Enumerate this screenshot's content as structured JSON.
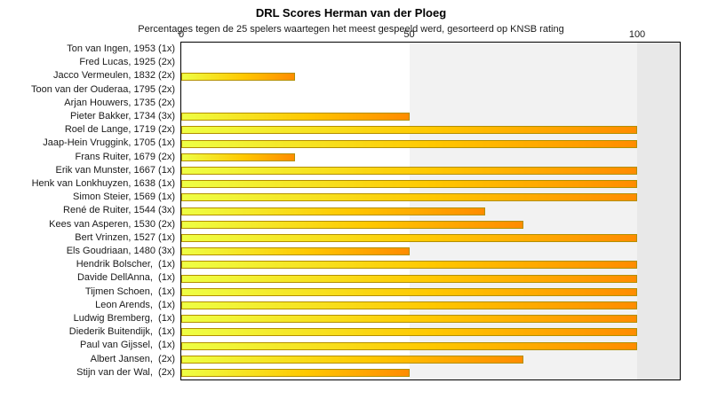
{
  "chart_data": {
    "type": "bar",
    "orientation": "horizontal",
    "title": "DRL Scores Herman van der Ploeg",
    "subtitle": "Percentages tegen de 25 spelers waartegen het meest gespeeld werd, gesorteerd op KNSB rating",
    "xlabel": "",
    "ylabel": "",
    "xlim": [
      0,
      100
    ],
    "x_ticks": [
      "0",
      "50",
      "100"
    ],
    "x_tick_values": [
      0,
      50,
      100
    ],
    "grid": "shaded band from 50 to 100, darker band past 100",
    "legend_position": "none",
    "categories": [
      "Ton van Ingen, 1953 (1x)",
      "Fred Lucas, 1925 (2x)",
      "Jacco Vermeulen, 1832 (2x)",
      "Toon van der Ouderaa, 1795 (2x)",
      "Arjan Houwers, 1735 (2x)",
      "Pieter Bakker, 1734 (3x)",
      "Roel de Lange, 1719 (2x)",
      "Jaap-Hein Vruggink, 1705 (1x)",
      "Frans Ruiter, 1679 (2x)",
      "Erik van Munster, 1667 (1x)",
      "Henk van Lonkhuyzen, 1638 (1x)",
      "Simon Steier, 1569 (1x)",
      "René de Ruiter, 1544 (3x)",
      "Kees van Asperen, 1530 (2x)",
      "Bert Vrinzen, 1527 (1x)",
      "Els Goudriaan, 1480 (3x)",
      "Hendrik Bolscher,  (1x)",
      "Davide DellAnna,  (1x)",
      "Tijmen Schoen,  (1x)",
      "Leon Arends,  (1x)",
      "Ludwig Bremberg,  (1x)",
      "Diederik Buitendijk,  (1x)",
      "Paul van Gijssel,  (1x)",
      "Albert Jansen,  (2x)",
      "Stijn van der Wal,  (2x)"
    ],
    "values": [
      0,
      0,
      25,
      0,
      0,
      50,
      100,
      100,
      25,
      100,
      100,
      100,
      66.7,
      75,
      100,
      50,
      100,
      100,
      100,
      100,
      100,
      100,
      100,
      75,
      50
    ],
    "colors": {
      "bar_gradient_start": "#eeff44",
      "bar_gradient_mid": "#ffc800",
      "bar_gradient_end": "#ff8c00",
      "bar_border": "#b38f00",
      "band_50_100": "#f2f2f2",
      "band_over_100": "#e8e8e8",
      "plot_border": "#000000",
      "background": "#ffffff",
      "text": "#1a1a1a"
    }
  }
}
